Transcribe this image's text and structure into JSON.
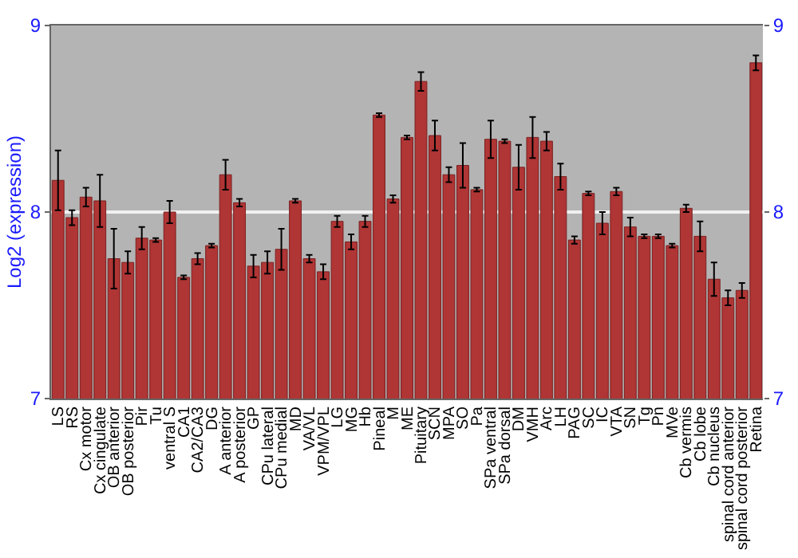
{
  "chart_data": {
    "type": "bar",
    "ylabel": "Log2 (expression)",
    "categories": [
      "LS",
      "RS",
      "Cx motor",
      "Cx cingulate",
      "OB anterior",
      "OB posterior",
      "Pir",
      "Tu",
      "ventral S",
      "CA1",
      "CA2/CA3",
      "DG",
      "A anterior",
      "A posterior",
      "GP",
      "CPu lateral",
      "CPu medial",
      "MD",
      "VA/VL",
      "VPM/VPL",
      "LG",
      "MG",
      "Hb",
      "Pineal",
      "M",
      "ME",
      "Pituitary",
      "SCN",
      "MPA",
      "SO",
      "Pa",
      "SPa ventral",
      "SPa dorsal",
      "DM",
      "VMH",
      "Arc",
      "LH",
      "PAG",
      "SC",
      "IC",
      "VTA",
      "SN",
      "Tg",
      "Pn",
      "MVe",
      "Cb vermis",
      "Cb lobe",
      "Cb nucleus",
      "spinal cord anterior",
      "spinal cord posterior",
      "Retina"
    ],
    "values": [
      8.17,
      7.97,
      8.08,
      8.06,
      7.75,
      7.73,
      7.86,
      7.85,
      8.0,
      7.65,
      7.75,
      7.82,
      8.2,
      8.05,
      7.71,
      7.73,
      7.8,
      8.06,
      7.75,
      7.68,
      7.95,
      7.84,
      7.95,
      8.52,
      8.07,
      8.4,
      8.7,
      8.41,
      8.2,
      8.25,
      8.12,
      8.39,
      8.38,
      8.24,
      8.4,
      8.38,
      8.19,
      7.85,
      8.1,
      7.94,
      8.11,
      7.92,
      7.87,
      7.87,
      7.82,
      8.02,
      7.87,
      7.64,
      7.54,
      7.58,
      8.8
    ],
    "errors": [
      0.16,
      0.04,
      0.05,
      0.14,
      0.16,
      0.06,
      0.06,
      0.01,
      0.06,
      0.01,
      0.03,
      0.01,
      0.08,
      0.02,
      0.06,
      0.06,
      0.11,
      0.01,
      0.02,
      0.04,
      0.03,
      0.04,
      0.03,
      0.01,
      0.02,
      0.01,
      0.05,
      0.08,
      0.04,
      0.12,
      0.01,
      0.1,
      0.01,
      0.12,
      0.11,
      0.05,
      0.07,
      0.02,
      0.01,
      0.06,
      0.02,
      0.05,
      0.01,
      0.01,
      0.01,
      0.02,
      0.08,
      0.09,
      0.04,
      0.04,
      0.04
    ],
    "color": "#b03535",
    "ylim": [
      7,
      9
    ],
    "yticks": [
      7,
      8,
      9
    ],
    "y2lim": [
      7,
      9
    ],
    "y2ticks": [
      7,
      8,
      9
    ],
    "grid": "y"
  }
}
